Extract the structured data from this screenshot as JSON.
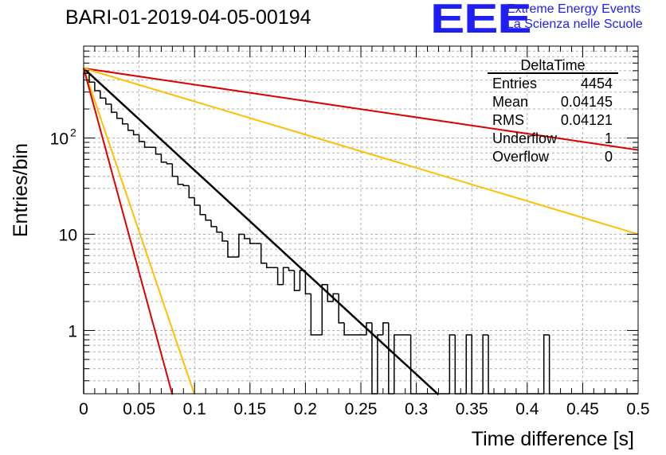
{
  "header": {
    "title": "BARI-01-2019-04-05-00194",
    "logo_text": "EEE",
    "logo_line1": "Extreme Energy Events",
    "logo_line2": "La Scienza nelle Scuole"
  },
  "stats": {
    "name": "DeltaTime",
    "rows": [
      {
        "label": "Entries",
        "value": "4454"
      },
      {
        "label": "Mean",
        "value": "0.04145"
      },
      {
        "label": "RMS",
        "value": "0.04121"
      },
      {
        "label": "Underflow",
        "value": "1"
      },
      {
        "label": "Overflow",
        "value": "0"
      }
    ]
  },
  "chart_data": {
    "type": "bar",
    "histtype": "step",
    "xlabel": "Time difference [s]",
    "ylabel": "Entries/bin",
    "xlim": [
      0,
      0.5
    ],
    "ylim": [
      0.22,
      900
    ],
    "yscale": "log",
    "grid": true,
    "x_ticks": [
      {
        "value": 0,
        "label": "0"
      },
      {
        "value": 0.05,
        "label": "0.05"
      },
      {
        "value": 0.1,
        "label": "0.1"
      },
      {
        "value": 0.15,
        "label": "0.15"
      },
      {
        "value": 0.2,
        "label": "0.2"
      },
      {
        "value": 0.25,
        "label": "0.25"
      },
      {
        "value": 0.3,
        "label": "0.3"
      },
      {
        "value": 0.35,
        "label": "0.35"
      },
      {
        "value": 0.4,
        "label": "0.4"
      },
      {
        "value": 0.45,
        "label": "0.45"
      },
      {
        "value": 0.5,
        "label": "0.5"
      }
    ],
    "y_ticks": [
      {
        "value": 1,
        "label": "1"
      },
      {
        "value": 10,
        "label": "10"
      },
      {
        "value": 100,
        "label": "10",
        "exp": "2"
      }
    ],
    "bin_width": 0.005,
    "bin_start": 0,
    "counts": [
      470,
      380,
      310,
      260,
      225,
      185,
      160,
      140,
      120,
      108,
      92,
      80,
      80,
      68,
      56,
      54,
      40,
      33,
      32,
      24,
      20,
      16,
      14,
      12,
      10.5,
      8.5,
      5.8,
      5.8,
      10,
      9,
      8,
      8,
      5,
      4.5,
      4.5,
      3,
      4.5,
      4.2,
      2.6,
      4.2,
      2.4,
      0.9,
      0.9,
      3,
      2,
      2.4,
      1.2,
      0.9,
      0.9,
      0.9,
      0.9,
      1.2,
      0.2,
      0.9,
      1.2,
      0.2,
      0.9,
      0.9,
      0.9,
      0.2,
      0.2,
      0.2,
      0.2,
      0.2,
      0.2,
      0.2,
      0.9,
      0.2,
      0.2,
      0.9,
      0.2,
      0.2,
      0.9,
      0.2,
      0.2,
      0.2,
      0.2,
      0.2,
      0.2,
      0.2,
      0.2,
      0.2,
      0.2,
      0.9,
      0.2,
      0.2,
      0.2,
      0.2,
      0.2,
      0.2,
      0.2,
      0.2,
      0.2,
      0.2,
      0.2,
      0.2,
      0.2,
      0.2,
      0.2,
      0.2
    ],
    "curves": [
      {
        "color": "#000000",
        "x": [
          0,
          0.32
        ],
        "y": [
          530,
          0.215
        ]
      },
      {
        "color": "#dd0000",
        "x": [
          0,
          0.5
        ],
        "y": [
          530,
          75
        ]
      },
      {
        "color": "#ffbf00",
        "x": [
          0,
          0.5
        ],
        "y": [
          530,
          10
        ]
      },
      {
        "color": "#ffbf00",
        "x": [
          0,
          0.1
        ],
        "y": [
          530,
          0.215
        ]
      },
      {
        "color": "#dd0000",
        "x": [
          0,
          0.08
        ],
        "y": [
          530,
          0.215
        ]
      }
    ]
  }
}
